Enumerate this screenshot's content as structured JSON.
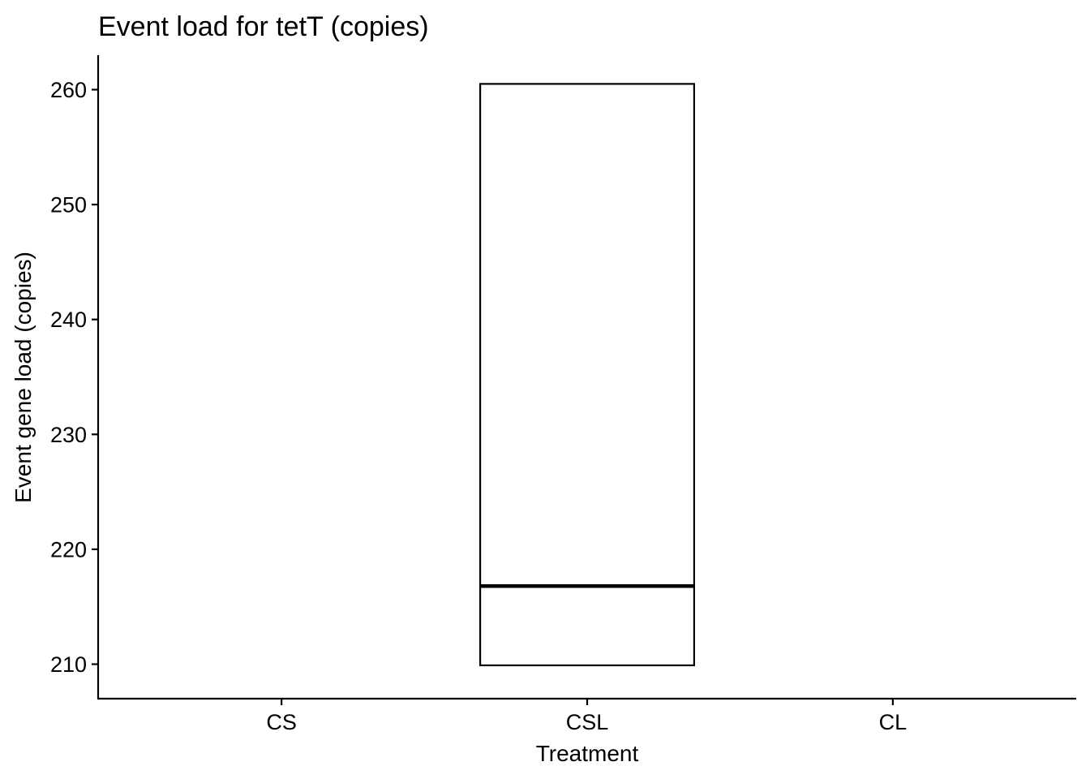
{
  "chart_data": {
    "type": "box",
    "title": "Event load for tetT (copies)",
    "xlabel": "Treatment",
    "ylabel": "Event gene load (copies)",
    "categories": [
      "CS",
      "CSL",
      "CL"
    ],
    "yticks": [
      210,
      220,
      230,
      240,
      250,
      260
    ],
    "ylim": [
      207,
      263
    ],
    "boxes": [
      {
        "category": "CSL",
        "q1": 209.9,
        "median": 216.8,
        "q3": 260.5
      }
    ],
    "grid": false,
    "legend": "none",
    "colors": {
      "box_fill": "#ffffff",
      "stroke": "#000000"
    }
  }
}
